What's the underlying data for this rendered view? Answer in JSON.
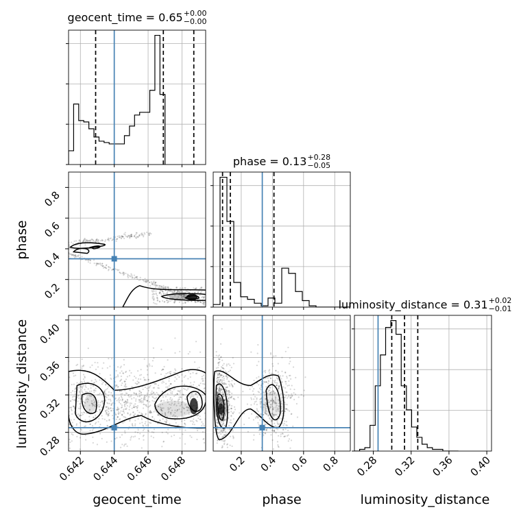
{
  "chart_data": {
    "type": "corner",
    "parameters": [
      {
        "name": "geocent_time",
        "range": [
          0.6413,
          0.6494
        ],
        "ticks": [
          "0.642",
          "0.644",
          "0.646",
          "0.648"
        ],
        "tick_values": [
          0.642,
          0.644,
          0.646,
          0.648
        ],
        "truth": 0.644
      },
      {
        "name": "phase",
        "range": [
          0.02,
          0.9
        ],
        "ticks": [
          "0.2",
          "0.4",
          "0.6",
          "0.8"
        ],
        "tick_values": [
          0.2,
          0.4,
          0.6,
          0.8
        ],
        "truth": 0.335
      },
      {
        "name": "luminosity_distance",
        "range": [
          0.26,
          0.405
        ],
        "ticks": [
          "0.28",
          "0.32",
          "0.36",
          "0.40"
        ],
        "tick_values": [
          0.28,
          0.32,
          0.36,
          0.4
        ],
        "truth": 0.285
      }
    ],
    "titles": [
      {
        "name": "geocent_time",
        "value": "0.65",
        "upper": "+0.00",
        "lower": "−0.00"
      },
      {
        "name": "phase",
        "value": "0.13",
        "upper": "+0.28",
        "lower": "−0.05"
      },
      {
        "name": "luminosity_distance",
        "value": "0.31",
        "upper": "+0.02",
        "lower": "−0.01"
      }
    ],
    "histograms": [
      {
        "param": "geocent_time",
        "edges_start": 0.6413,
        "bin_width": 0.0003,
        "counts": [
          10,
          44,
          32,
          31,
          26,
          20,
          17,
          16,
          15,
          15,
          15,
          21,
          28,
          36,
          38,
          38,
          54,
          94,
          51
        ],
        "quantiles": [
          0.6429,
          0.6469,
          0.6487
        ]
      },
      {
        "param": "phase",
        "edges_start": 0.02,
        "bin_width": 0.044,
        "counts": [
          2,
          100,
          66,
          19,
          8,
          6,
          3,
          1,
          7,
          3,
          30,
          26,
          12,
          5,
          1,
          0,
          0,
          0,
          0,
          0
        ],
        "quantiles": [
          0.08,
          0.13,
          0.41
        ]
      },
      {
        "param": "luminosity_distance",
        "edges_start": 0.26,
        "bin_width": 0.0055,
        "counts": [
          0,
          1,
          2,
          15,
          38,
          56,
          72,
          76,
          68,
          38,
          24,
          14,
          8,
          4,
          2,
          1,
          1,
          0,
          0,
          0
        ],
        "quantiles": [
          0.2995,
          0.313,
          0.327
        ]
      }
    ],
    "grid": true,
    "truth_color": "#4682b4",
    "quantile_style": "dashed black",
    "contour_color": "#000000",
    "density_color": "#000000"
  }
}
